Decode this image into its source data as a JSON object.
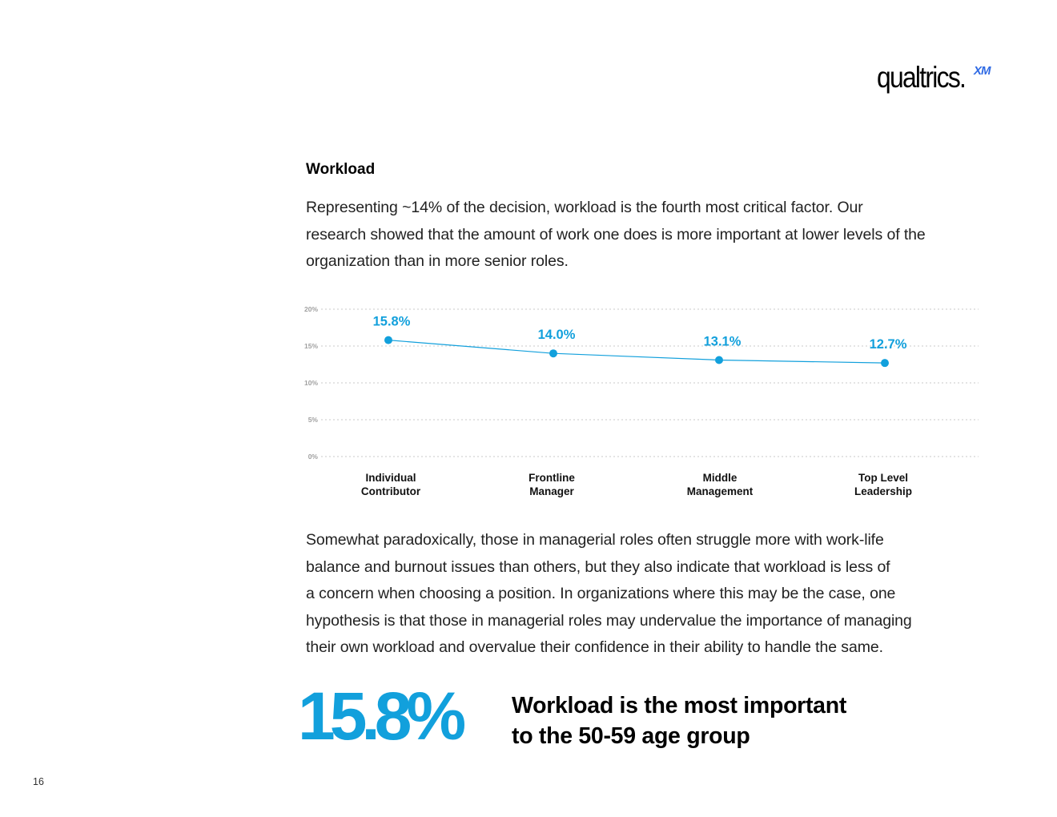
{
  "brand": {
    "name": "qualtrics.",
    "suffix": "XM",
    "accent": "#2f6ae4"
  },
  "section": {
    "heading": "Workload"
  },
  "intro": {
    "lines": [
      "Representing ~14% of the decision, workload is the fourth most critical factor. Our",
      "research showed that the amount of work one does is more important at lower levels of the",
      "organization than in more senior roles."
    ]
  },
  "chart_data": {
    "type": "line",
    "categories": [
      [
        "Individual",
        "Contributor"
      ],
      [
        "Frontline",
        "Manager"
      ],
      [
        "Middle",
        "Management"
      ],
      [
        "Top Level",
        "Leadership"
      ]
    ],
    "values": [
      15.8,
      14.0,
      13.1,
      12.7
    ],
    "value_labels": [
      "15.8%",
      "14.0%",
      "13.1%",
      "12.7%"
    ],
    "y_ticks": [
      "0%",
      "5%",
      "10%",
      "15%",
      "20%"
    ],
    "ylim": [
      0,
      20
    ],
    "grid": true,
    "color": "#12a0dc",
    "title": "",
    "xlabel": "",
    "ylabel": ""
  },
  "body": {
    "lines": [
      "Somewhat paradoxically, those in managerial roles often struggle more with work-life",
      "balance and burnout issues than others, but they also indicate that workload is less of",
      "a concern when choosing a position. In organizations where this may be the case, one",
      "hypothesis is that those in managerial roles may undervalue the importance of managing",
      "their own workload and overvalue their confidence in their ability to handle the same."
    ]
  },
  "callout": {
    "value": "15.8%",
    "caption_lines": [
      "Workload is the most important",
      "to the 50-59 age group"
    ],
    "color": "#12a0dc"
  },
  "page": {
    "number": "16"
  }
}
